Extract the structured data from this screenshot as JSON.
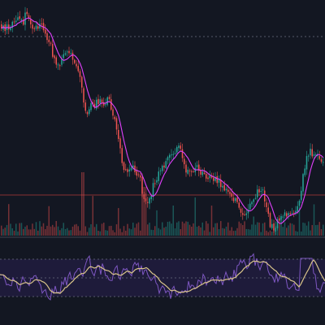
{
  "theme": {
    "background": "#131722",
    "up_color": "#26a69a",
    "down_color": "#ef5350",
    "ma_color": "#e040fb",
    "price_line_color": "#b23a3a",
    "dashed_line_color": "#6b7080",
    "osc_band_color": "#1e1b3a",
    "osc_fast_color": "#7e57c2",
    "osc_slow_color": "#d9c48a",
    "separator_color": "#2a2e39"
  },
  "chart_data": [
    {
      "type": "candlestick",
      "title": "",
      "xlabel": "",
      "ylabel": "",
      "series": [
        {
          "name": "",
          "kind": "ohlc"
        },
        {
          "name": "",
          "kind": "moving-average"
        },
        {
          "name": "",
          "kind": "volume"
        }
      ],
      "grid": false,
      "legend": "none",
      "anchors": [
        [
          0,
          30
        ],
        [
          6,
          36
        ],
        [
          10,
          32
        ],
        [
          16,
          28
        ],
        [
          22,
          18
        ],
        [
          28,
          26
        ],
        [
          32,
          12
        ],
        [
          36,
          22
        ],
        [
          40,
          40
        ],
        [
          44,
          34
        ],
        [
          48,
          30
        ],
        [
          52,
          34
        ],
        [
          56,
          44
        ],
        [
          60,
          50
        ],
        [
          64,
          66
        ],
        [
          68,
          82
        ],
        [
          72,
          80
        ],
        [
          76,
          74
        ],
        [
          80,
          66
        ],
        [
          84,
          66
        ],
        [
          88,
          72
        ],
        [
          92,
          74
        ],
        [
          96,
          92
        ],
        [
          100,
          104
        ],
        [
          104,
          140
        ],
        [
          108,
          140
        ],
        [
          112,
          128
        ],
        [
          116,
          130
        ],
        [
          120,
          124
        ],
        [
          124,
          124
        ],
        [
          128,
          134
        ],
        [
          132,
          122
        ],
        [
          136,
          132
        ],
        [
          140,
          148
        ],
        [
          144,
          170
        ],
        [
          148,
          190
        ],
        [
          152,
          214
        ],
        [
          156,
          212
        ],
        [
          160,
          206
        ],
        [
          164,
          208
        ],
        [
          168,
          214
        ],
        [
          172,
          222
        ],
        [
          176,
          246
        ],
        [
          180,
          252
        ],
        [
          184,
          242
        ],
        [
          188,
          228
        ],
        [
          192,
          220
        ],
        [
          196,
          210
        ],
        [
          200,
          204
        ],
        [
          204,
          198
        ],
        [
          208,
          192
        ],
        [
          212,
          190
        ],
        [
          216,
          186
        ],
        [
          220,
          182
        ],
        [
          224,
          194
        ],
        [
          228,
          208
        ],
        [
          232,
          206
        ],
        [
          236,
          210
        ],
        [
          240,
          206
        ],
        [
          244,
          210
        ],
        [
          248,
          212
        ],
        [
          252,
          216
        ],
        [
          256,
          216
        ],
        [
          260,
          220
        ],
        [
          264,
          218
        ],
        [
          268,
          224
        ],
        [
          272,
          230
        ],
        [
          276,
          232
        ],
        [
          280,
          236
        ],
        [
          284,
          240
        ],
        [
          288,
          246
        ],
        [
          292,
          252
        ],
        [
          296,
          258
        ],
        [
          300,
          262
        ],
        [
          304,
          256
        ],
        [
          308,
          252
        ],
        [
          312,
          244
        ],
        [
          316,
          236
        ],
        [
          320,
          234
        ],
        [
          324,
          238
        ],
        [
          328,
          262
        ],
        [
          332,
          276
        ],
        [
          336,
          284
        ],
        [
          340,
          272
        ],
        [
          344,
          266
        ],
        [
          348,
          262
        ],
        [
          352,
          264
        ],
        [
          356,
          268
        ],
        [
          360,
          266
        ],
        [
          364,
          262
        ],
        [
          368,
          248
        ],
        [
          372,
          218
        ],
        [
          376,
          194
        ],
        [
          380,
          186
        ],
        [
          384,
          190
        ],
        [
          388,
          194
        ],
        [
          392,
          196
        ],
        [
          396,
          198
        ],
        [
          400,
          198
        ]
      ],
      "price_line_level": 240,
      "upper_dashed_level": 45
    },
    {
      "type": "line",
      "title": "",
      "xlabel": "",
      "ylabel": "",
      "series": [
        {
          "name": "",
          "kind": "oscillator-fast"
        },
        {
          "name": "",
          "kind": "oscillator-slow"
        }
      ],
      "grid": false,
      "legend": "none",
      "guide_levels": [
        "upper",
        "middle",
        "lower"
      ]
    }
  ]
}
